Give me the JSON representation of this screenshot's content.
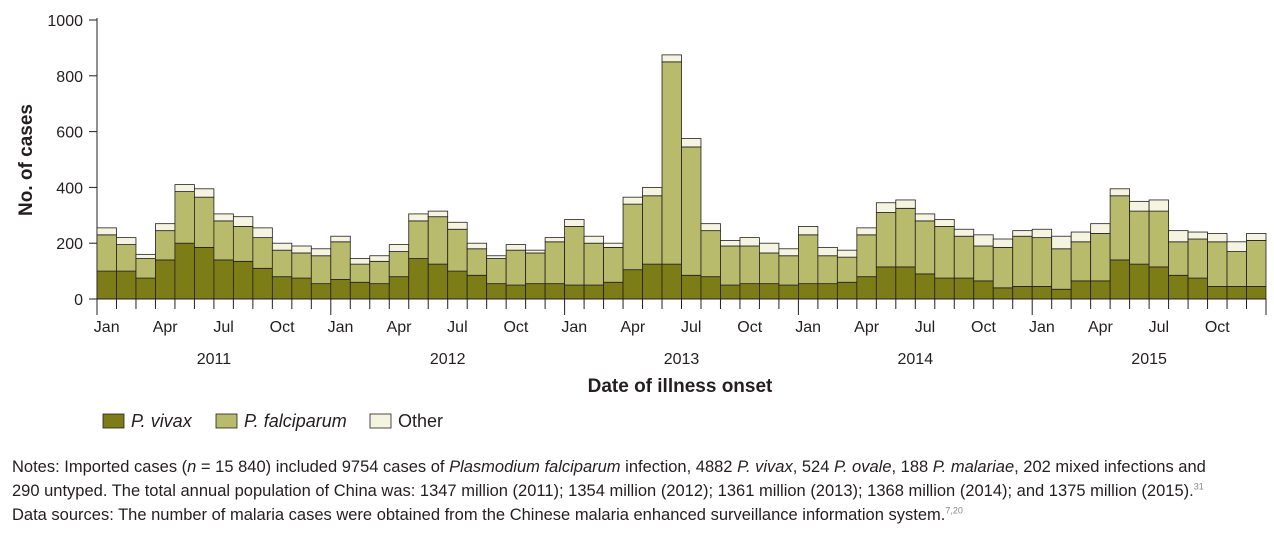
{
  "chart_data": {
    "type": "bar",
    "stacked": true,
    "ylabel": "No. of cases",
    "xlabel": "Date of illness onset",
    "ylim": [
      0,
      1000
    ],
    "yticks": [
      0,
      200,
      400,
      600,
      800,
      1000
    ],
    "month_tick_labels": [
      "Jan",
      "Apr",
      "Jul",
      "Oct"
    ],
    "years": [
      "2011",
      "2012",
      "2013",
      "2014",
      "2015"
    ],
    "colors": {
      "vivax": "#7d7d18",
      "falciparum": "#b7bb6b",
      "other": "#f4f4e0",
      "edge": "#231f20"
    },
    "legend_position": "bottom-left",
    "series": [
      {
        "name": "P. vivax",
        "key": "vivax",
        "values": [
          100,
          100,
          75,
          140,
          200,
          185,
          140,
          135,
          110,
          80,
          75,
          55,
          70,
          60,
          55,
          80,
          145,
          125,
          100,
          85,
          55,
          50,
          55,
          55,
          50,
          50,
          60,
          105,
          125,
          125,
          85,
          80,
          50,
          55,
          55,
          50,
          55,
          55,
          60,
          80,
          115,
          115,
          90,
          75,
          75,
          65,
          40,
          45,
          45,
          35,
          65,
          65,
          140,
          125,
          115,
          85,
          75,
          45,
          45,
          45
        ]
      },
      {
        "name": "P. falciparum",
        "key": "falciparum",
        "values": [
          130,
          95,
          70,
          105,
          185,
          180,
          140,
          125,
          110,
          95,
          90,
          100,
          135,
          65,
          80,
          90,
          135,
          170,
          150,
          95,
          90,
          125,
          110,
          150,
          210,
          150,
          125,
          235,
          245,
          725,
          460,
          165,
          140,
          135,
          110,
          105,
          175,
          100,
          90,
          150,
          195,
          210,
          190,
          185,
          150,
          125,
          145,
          180,
          175,
          145,
          140,
          170,
          230,
          190,
          200,
          120,
          140,
          160,
          125,
          165
        ]
      },
      {
        "name": "Other",
        "key": "other",
        "values": [
          25,
          25,
          15,
          25,
          25,
          30,
          25,
          35,
          35,
          25,
          25,
          25,
          20,
          20,
          20,
          25,
          25,
          20,
          25,
          20,
          10,
          20,
          10,
          15,
          25,
          25,
          15,
          25,
          30,
          25,
          30,
          25,
          20,
          30,
          35,
          25,
          30,
          30,
          25,
          25,
          35,
          30,
          25,
          25,
          25,
          40,
          30,
          20,
          30,
          45,
          35,
          35,
          25,
          35,
          40,
          40,
          25,
          30,
          35,
          25
        ]
      }
    ]
  },
  "legend": {
    "vivax_label": "P. vivax",
    "falciparum_label": "P. falciparum",
    "other_label": "Other"
  },
  "notes": {
    "line1_a": "Notes: Imported cases (",
    "line1_n": "n",
    "line1_b": " = 15 840) included 9754 cases of ",
    "line1_pf": "Plasmodium falciparum",
    "line1_c": " infection, 4882 ",
    "line1_pv": "P. vivax",
    "line1_d": ", 524 ",
    "line1_po": "P. ovale",
    "line1_e": ", 188 ",
    "line1_pm": "P. malariae",
    "line1_f": ", 202 mixed infections and",
    "line2": "290 untyped. The total annual population of China was: 1347 million (2011); 1354 million (2012); 1361 million (2013); 1368 million (2014); and 1375 million (2015).",
    "line2_ref": "31",
    "line3": "Data sources: The number of malaria cases were obtained from the Chinese malaria enhanced surveillance information system.",
    "line3_ref": "7,20"
  }
}
